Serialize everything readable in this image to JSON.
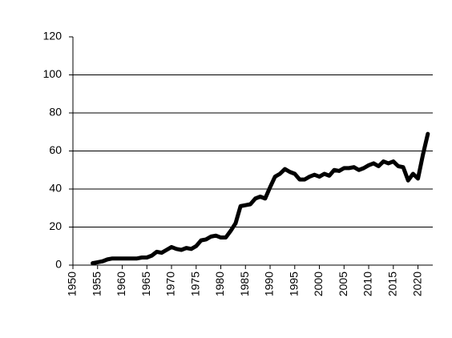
{
  "chart_data": {
    "type": "line",
    "color": "#000000",
    "x": [
      1954,
      1955,
      1956,
      1957,
      1958,
      1959,
      1960,
      1961,
      1962,
      1963,
      1964,
      1965,
      1966,
      1967,
      1968,
      1969,
      1970,
      1971,
      1972,
      1973,
      1974,
      1975,
      1976,
      1977,
      1978,
      1979,
      1980,
      1981,
      1982,
      1983,
      1984,
      1985,
      1986,
      1987,
      1988,
      1989,
      1990,
      1991,
      1992,
      1993,
      1994,
      1995,
      1996,
      1997,
      1998,
      1999,
      2000,
      2001,
      2002,
      2003,
      2004,
      2005,
      2006,
      2007,
      2008,
      2009,
      2010,
      2011,
      2012,
      2013,
      2014,
      2015,
      2016,
      2017,
      2018,
      2019,
      2020,
      2021,
      2022
    ],
    "values": [
      1,
      1.5,
      2,
      3,
      3.5,
      3.5,
      3.5,
      3.5,
      3.5,
      3.5,
      4,
      4,
      5,
      7,
      6.5,
      8,
      9.5,
      8.5,
      8,
      9,
      8.5,
      10,
      13,
      13.5,
      15,
      15.5,
      14.5,
      14.5,
      18,
      22,
      31,
      31.5,
      32,
      35,
      36,
      35,
      41,
      46.5,
      48,
      50.5,
      49,
      48,
      45,
      45,
      46.5,
      47.5,
      46.5,
      48,
      47,
      50,
      49.5,
      51,
      51,
      51.5,
      50,
      51,
      52.5,
      53.5,
      52,
      54.5,
      53.5,
      54.5,
      52,
      51.5,
      44.5,
      48,
      45.5,
      58,
      69
    ],
    "xlim": [
      1950,
      2023
    ],
    "xticks": [
      1950,
      1955,
      1960,
      1965,
      1970,
      1975,
      1980,
      1985,
      1990,
      1995,
      2000,
      2005,
      2010,
      2015,
      2020
    ],
    "ylim": [
      0,
      120
    ],
    "yticks": [
      0,
      20,
      40,
      60,
      80,
      100,
      120
    ],
    "grid": true
  }
}
